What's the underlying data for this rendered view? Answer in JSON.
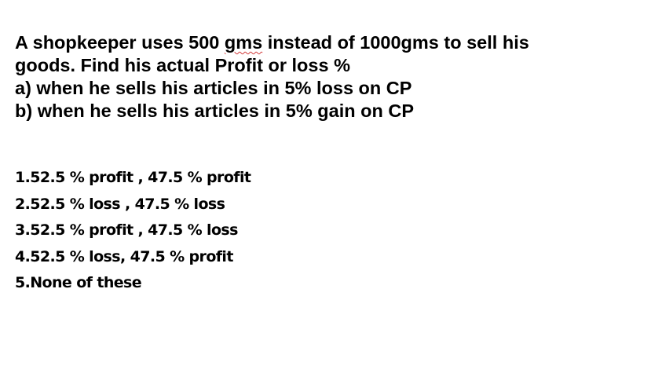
{
  "question": {
    "line1_before": "A shopkeeper uses 500 ",
    "line1_marked": "gms",
    "line1_after": " instead of 1000gms to sell his",
    "line2": "goods. Find his actual Profit or loss %",
    "line3": "a) when he sells his articles in 5% loss on CP",
    "line4": "b) when he sells his articles in 5% gain on CP"
  },
  "options": [
    "1.52.5 % profit , 47.5 % profit",
    "2.52.5 % loss , 47.5 % loss",
    "3.52.5 % profit , 47.5 % loss",
    "4.52.5 % loss, 47.5 % profit",
    "5.None of these"
  ],
  "colors": {
    "text": "#000000",
    "background": "#ffffff",
    "spellcheck_underline": "#d23b3b"
  }
}
